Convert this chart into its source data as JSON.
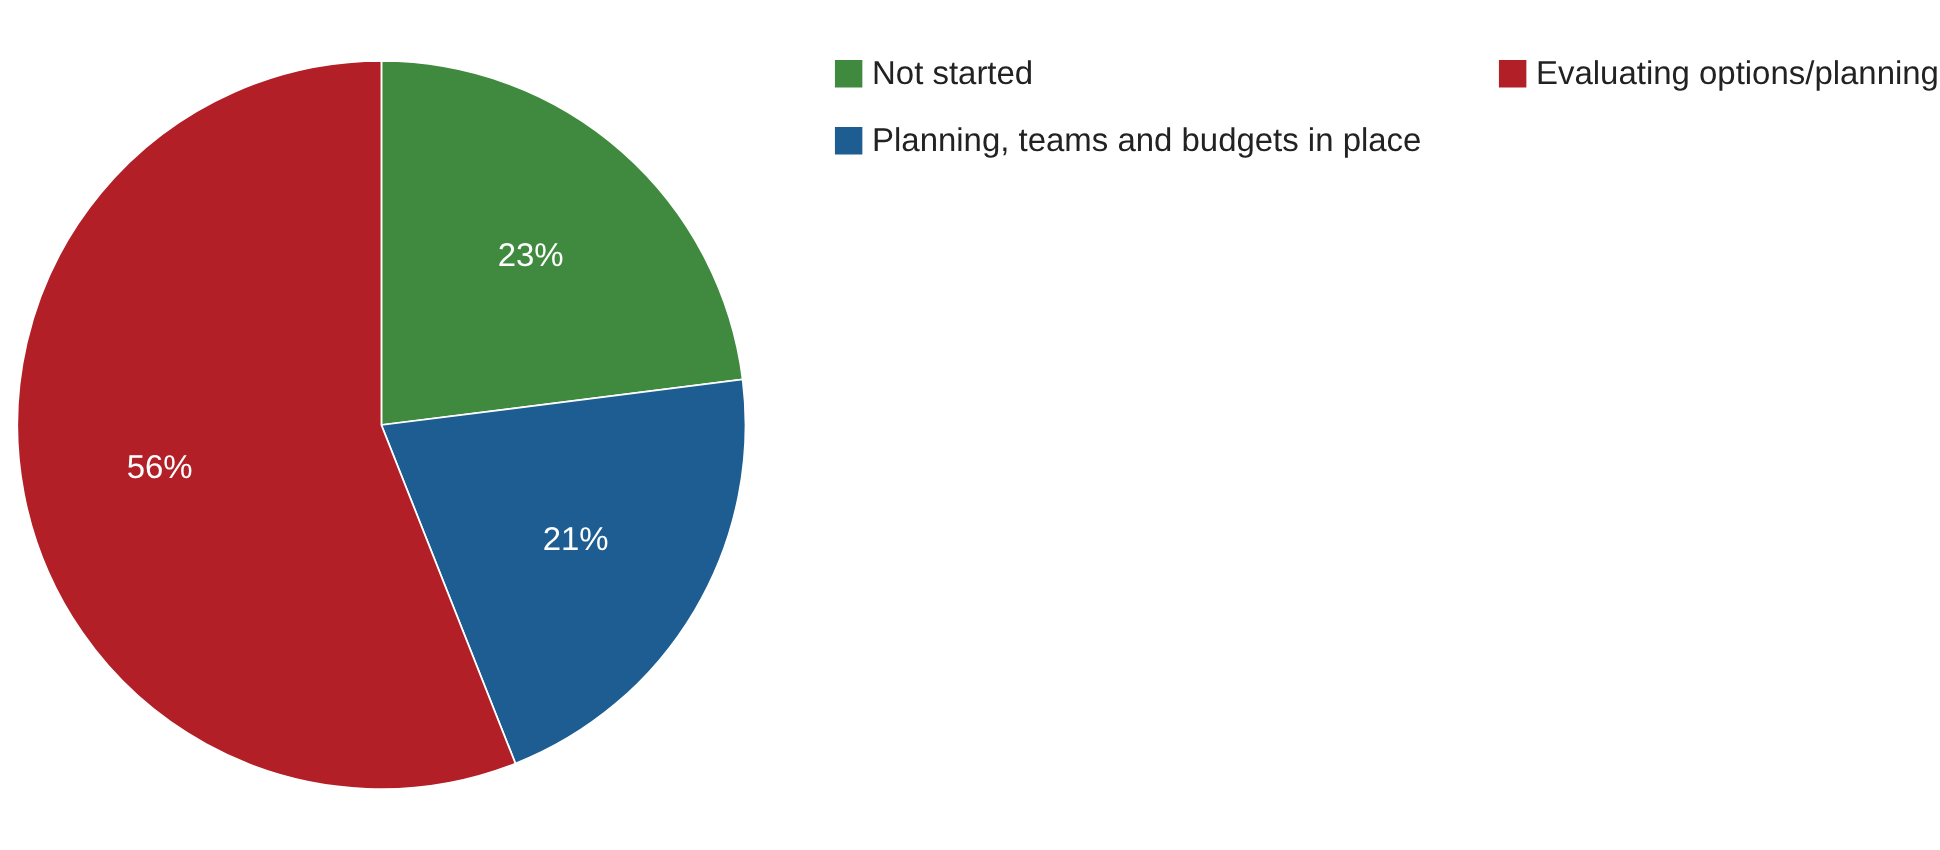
{
  "chart_data": {
    "type": "pie",
    "categories": [
      "Not started",
      "Planning, teams and budgets in place",
      "Evaluating options/planning"
    ],
    "values": [
      23,
      21,
      56
    ],
    "colors": [
      "#3f8a3f",
      "#1d5d92",
      "#b21f27"
    ],
    "value_labels": [
      "23%",
      "21%",
      "56%"
    ],
    "legend": "right"
  }
}
